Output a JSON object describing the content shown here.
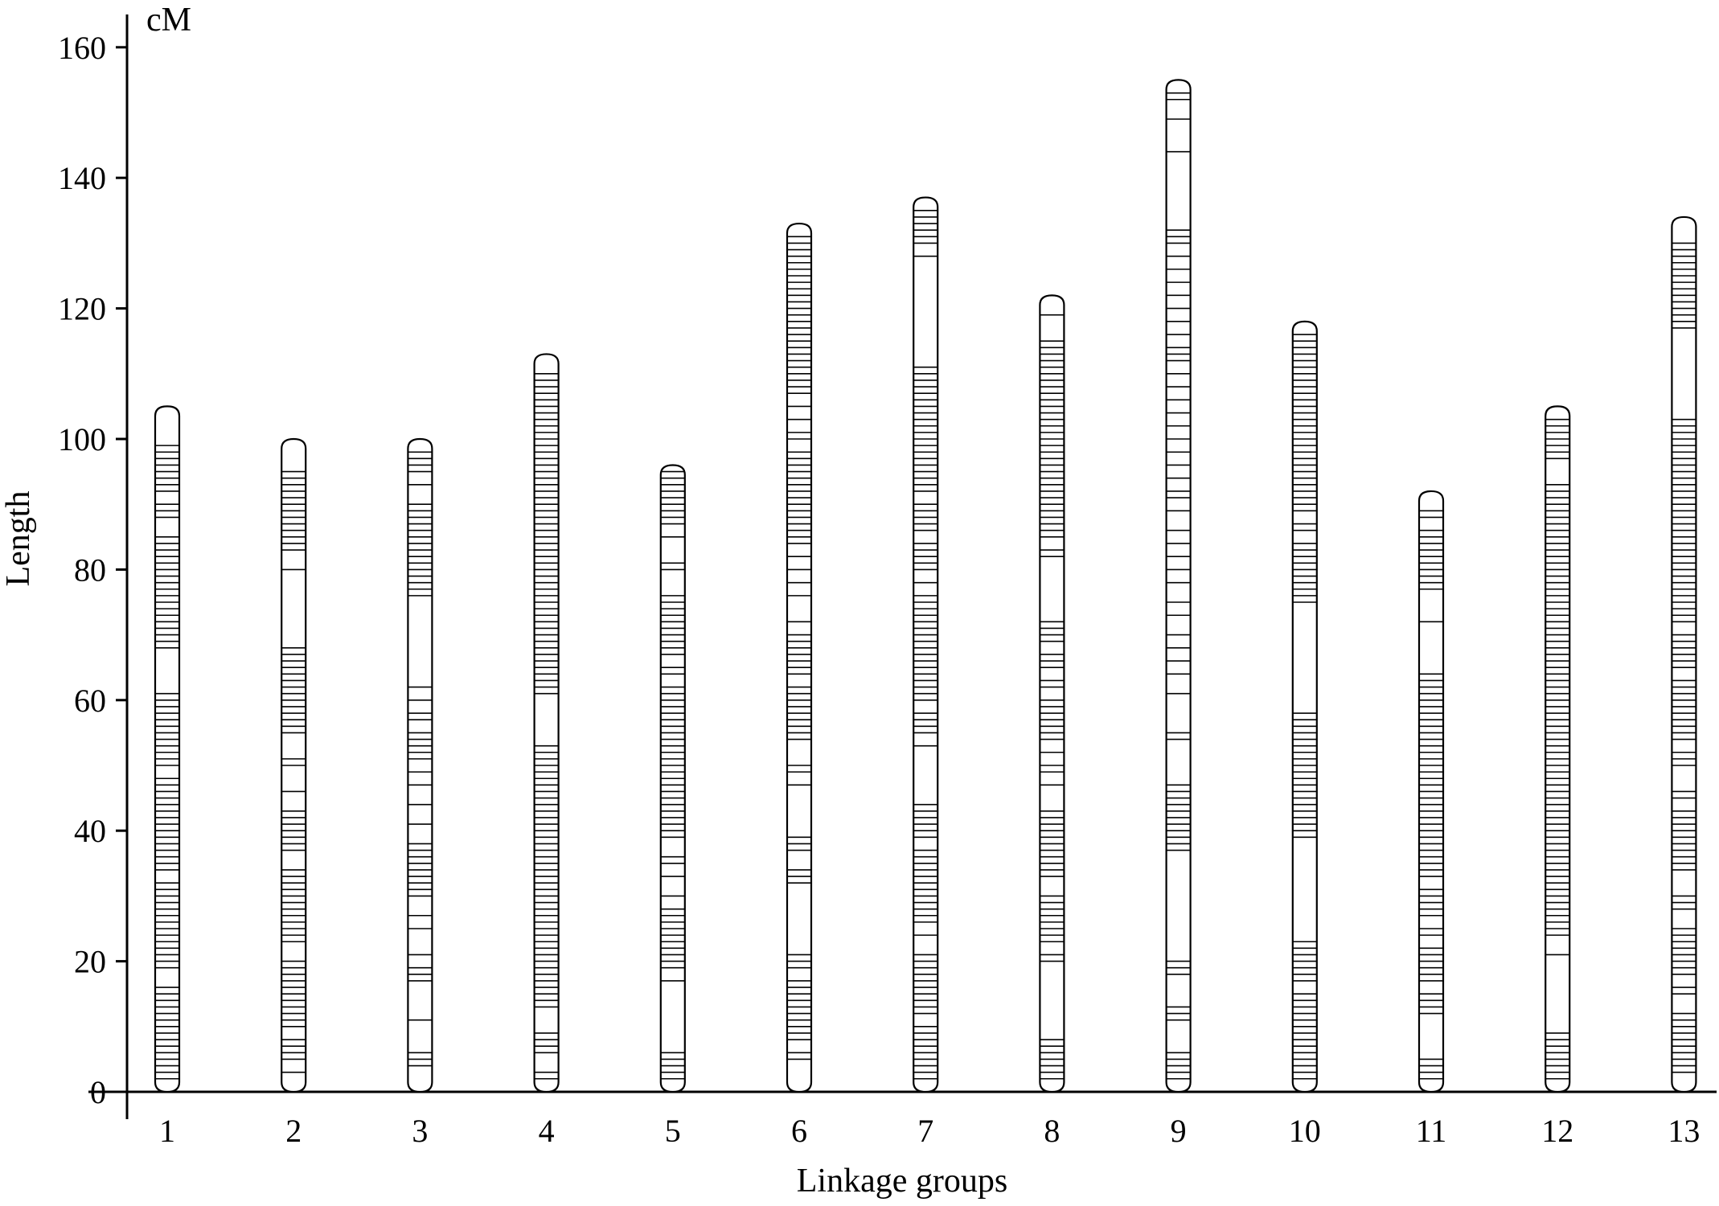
{
  "chart_data": {
    "type": "linkage-map",
    "unit_label": "cM",
    "ylabel": "Length",
    "xlabel": "Linkage groups",
    "ylim": [
      0,
      170
    ],
    "yticks": [
      0,
      20,
      40,
      60,
      80,
      100,
      120,
      140,
      160
    ],
    "grid": false,
    "legend": "none",
    "groups": [
      {
        "name": "1",
        "length": 105,
        "markers": [
          2,
          3,
          4,
          5,
          6,
          7,
          8,
          9,
          10,
          11,
          12,
          13,
          14,
          15,
          16,
          19,
          20,
          21,
          22,
          23,
          24,
          25,
          26,
          27,
          28,
          29,
          30,
          31,
          32,
          34,
          35,
          36,
          37,
          38,
          39,
          40,
          41,
          42,
          43,
          44,
          45,
          46,
          47,
          48,
          50,
          51,
          52,
          53,
          54,
          55,
          56,
          57,
          58,
          59,
          60,
          61,
          68,
          69,
          70,
          71,
          72,
          73,
          74,
          75,
          76,
          77,
          78,
          79,
          80,
          81,
          82,
          83,
          84,
          85,
          88,
          89,
          90,
          92,
          93,
          94,
          95,
          96,
          97,
          98,
          99
        ]
      },
      {
        "name": "2",
        "length": 100,
        "markers": [
          3,
          5,
          6,
          7,
          8,
          10,
          11,
          12,
          13,
          14,
          15,
          16,
          17,
          18,
          19,
          20,
          23,
          24,
          25,
          26,
          27,
          28,
          29,
          30,
          31,
          32,
          33,
          34,
          37,
          38,
          39,
          40,
          41,
          42,
          43,
          46,
          50,
          51,
          55,
          56,
          57,
          58,
          59,
          60,
          61,
          62,
          63,
          64,
          65,
          66,
          67,
          68,
          80,
          83,
          84,
          85,
          86,
          87,
          88,
          89,
          90,
          91,
          92,
          93,
          94,
          95
        ]
      },
      {
        "name": "3",
        "length": 100,
        "markers": [
          4,
          5,
          6,
          11,
          17,
          18,
          19,
          21,
          25,
          27,
          30,
          31,
          32,
          33,
          34,
          35,
          36,
          37,
          38,
          41,
          44,
          47,
          49,
          51,
          52,
          53,
          54,
          55,
          57,
          58,
          60,
          62,
          76,
          77,
          78,
          79,
          80,
          81,
          82,
          83,
          84,
          85,
          86,
          87,
          88,
          89,
          90,
          93,
          95,
          96,
          97,
          98
        ]
      },
      {
        "name": "4",
        "length": 113,
        "markers": [
          2,
          3,
          6,
          7,
          8,
          9,
          13,
          14,
          15,
          16,
          17,
          18,
          19,
          20,
          21,
          22,
          23,
          24,
          25,
          26,
          27,
          28,
          29,
          30,
          31,
          32,
          33,
          34,
          35,
          36,
          37,
          38,
          39,
          40,
          41,
          42,
          43,
          44,
          45,
          46,
          47,
          48,
          49,
          50,
          51,
          52,
          53,
          61,
          62,
          63,
          64,
          65,
          66,
          67,
          68,
          69,
          70,
          71,
          72,
          73,
          74,
          75,
          76,
          77,
          78,
          79,
          80,
          81,
          82,
          83,
          84,
          85,
          86,
          87,
          88,
          89,
          90,
          91,
          92,
          93,
          94,
          95,
          96,
          97,
          98,
          99,
          100,
          101,
          102,
          103,
          104,
          105,
          106,
          107,
          108,
          109,
          110
        ]
      },
      {
        "name": "5",
        "length": 96,
        "markers": [
          2,
          3,
          4,
          5,
          6,
          17,
          19,
          20,
          21,
          22,
          23,
          24,
          25,
          26,
          27,
          28,
          30,
          33,
          35,
          36,
          39,
          40,
          41,
          42,
          43,
          44,
          45,
          46,
          47,
          48,
          49,
          50,
          51,
          52,
          53,
          54,
          55,
          56,
          57,
          58,
          59,
          60,
          61,
          62,
          64,
          65,
          67,
          68,
          69,
          70,
          71,
          72,
          73,
          74,
          75,
          76,
          80,
          81,
          85,
          87,
          88,
          89,
          90,
          91,
          92,
          93,
          94,
          95
        ]
      },
      {
        "name": "6",
        "length": 133,
        "markers": [
          5,
          6,
          8,
          9,
          10,
          11,
          12,
          13,
          14,
          15,
          16,
          17,
          19,
          20,
          21,
          32,
          33,
          34,
          37,
          38,
          39,
          47,
          49,
          50,
          54,
          55,
          56,
          57,
          58,
          59,
          60,
          61,
          62,
          64,
          65,
          66,
          67,
          68,
          69,
          70,
          72,
          76,
          78,
          80,
          82,
          84,
          85,
          86,
          87,
          88,
          89,
          90,
          91,
          92,
          93,
          94,
          95,
          96,
          97,
          98,
          100,
          101,
          103,
          105,
          107,
          108,
          109,
          110,
          111,
          112,
          113,
          114,
          115,
          116,
          117,
          118,
          119,
          120,
          121,
          122,
          123,
          124,
          125,
          126,
          127,
          128,
          129,
          130,
          131
        ]
      },
      {
        "name": "7",
        "length": 137,
        "markers": [
          2,
          3,
          4,
          5,
          6,
          7,
          8,
          9,
          10,
          12,
          13,
          14,
          15,
          16,
          17,
          18,
          19,
          20,
          21,
          24,
          26,
          27,
          28,
          29,
          30,
          31,
          32,
          33,
          34,
          35,
          36,
          37,
          39,
          40,
          41,
          42,
          43,
          44,
          53,
          55,
          56,
          57,
          58,
          60,
          61,
          62,
          63,
          64,
          65,
          66,
          67,
          68,
          69,
          70,
          71,
          72,
          73,
          74,
          75,
          76,
          78,
          80,
          81,
          82,
          83,
          84,
          86,
          87,
          88,
          89,
          90,
          92,
          93,
          94,
          95,
          96,
          97,
          98,
          99,
          100,
          101,
          102,
          103,
          104,
          105,
          106,
          107,
          108,
          109,
          110,
          111,
          128,
          130,
          131,
          132,
          133,
          134,
          135
        ]
      },
      {
        "name": "8",
        "length": 122,
        "markers": [
          2,
          3,
          4,
          5,
          6,
          7,
          8,
          20,
          21,
          23,
          24,
          25,
          26,
          27,
          28,
          29,
          30,
          33,
          34,
          35,
          36,
          37,
          38,
          39,
          40,
          41,
          42,
          43,
          47,
          49,
          50,
          52,
          54,
          55,
          56,
          57,
          58,
          59,
          60,
          62,
          63,
          65,
          66,
          67,
          69,
          70,
          71,
          72,
          82,
          83,
          85,
          86,
          87,
          88,
          89,
          90,
          91,
          92,
          93,
          94,
          95,
          96,
          97,
          98,
          99,
          100,
          101,
          102,
          103,
          104,
          105,
          106,
          107,
          108,
          109,
          110,
          111,
          112,
          113,
          114,
          115,
          119
        ]
      },
      {
        "name": "9",
        "length": 155,
        "markers": [
          2,
          3,
          4,
          5,
          6,
          11,
          12,
          13,
          18,
          19,
          20,
          37,
          38,
          39,
          40,
          41,
          42,
          43,
          44,
          45,
          46,
          47,
          54,
          55,
          61,
          64,
          66,
          68,
          70,
          73,
          75,
          78,
          80,
          82,
          84,
          86,
          89,
          91,
          92,
          94,
          96,
          98,
          100,
          102,
          104,
          106,
          108,
          110,
          112,
          113,
          114,
          116,
          118,
          120,
          122,
          124,
          126,
          128,
          130,
          131,
          132,
          144,
          149,
          152,
          153
        ]
      },
      {
        "name": "10",
        "length": 118,
        "markers": [
          2,
          3,
          4,
          5,
          6,
          7,
          8,
          9,
          10,
          11,
          12,
          13,
          14,
          15,
          17,
          18,
          19,
          20,
          21,
          22,
          23,
          39,
          40,
          41,
          42,
          43,
          44,
          45,
          46,
          47,
          48,
          49,
          50,
          51,
          52,
          53,
          54,
          55,
          56,
          57,
          58,
          75,
          76,
          77,
          78,
          79,
          80,
          81,
          82,
          83,
          84,
          86,
          87,
          89,
          90,
          91,
          92,
          93,
          94,
          95,
          96,
          97,
          98,
          99,
          100,
          101,
          102,
          103,
          104,
          105,
          106,
          107,
          108,
          109,
          110,
          111,
          112,
          113,
          114,
          115,
          116
        ]
      },
      {
        "name": "11",
        "length": 92,
        "markers": [
          2,
          3,
          4,
          5,
          12,
          13,
          14,
          15,
          17,
          18,
          19,
          20,
          21,
          22,
          24,
          25,
          27,
          28,
          29,
          30,
          31,
          33,
          34,
          35,
          36,
          37,
          38,
          39,
          40,
          41,
          42,
          43,
          44,
          45,
          46,
          47,
          48,
          49,
          50,
          51,
          52,
          53,
          54,
          55,
          56,
          57,
          58,
          59,
          60,
          61,
          62,
          63,
          64,
          72,
          77,
          78,
          79,
          80,
          81,
          82,
          83,
          84,
          85,
          86,
          88,
          89
        ]
      },
      {
        "name": "12",
        "length": 105,
        "markers": [
          2,
          3,
          4,
          5,
          6,
          7,
          8,
          9,
          21,
          24,
          25,
          26,
          27,
          28,
          29,
          30,
          31,
          32,
          33,
          34,
          35,
          36,
          37,
          38,
          39,
          40,
          41,
          42,
          43,
          44,
          45,
          46,
          47,
          48,
          49,
          50,
          51,
          52,
          53,
          54,
          55,
          56,
          57,
          58,
          59,
          60,
          61,
          62,
          63,
          64,
          65,
          66,
          67,
          68,
          69,
          70,
          71,
          72,
          73,
          74,
          75,
          76,
          77,
          78,
          79,
          80,
          81,
          82,
          83,
          84,
          85,
          86,
          87,
          88,
          89,
          90,
          91,
          92,
          93,
          97,
          98,
          99,
          100,
          101,
          102,
          103
        ]
      },
      {
        "name": "13",
        "length": 134,
        "markers": [
          3,
          4,
          5,
          6,
          7,
          8,
          9,
          10,
          11,
          12,
          15,
          16,
          18,
          19,
          20,
          21,
          22,
          23,
          24,
          25,
          28,
          29,
          30,
          34,
          35,
          36,
          37,
          38,
          39,
          40,
          41,
          42,
          43,
          45,
          46,
          50,
          51,
          52,
          54,
          55,
          56,
          57,
          58,
          59,
          60,
          61,
          62,
          63,
          65,
          66,
          67,
          68,
          69,
          70,
          72,
          73,
          74,
          75,
          76,
          77,
          78,
          79,
          80,
          81,
          82,
          83,
          84,
          85,
          86,
          87,
          88,
          89,
          90,
          91,
          92,
          93,
          94,
          95,
          96,
          97,
          98,
          99,
          100,
          101,
          102,
          103,
          117,
          118,
          119,
          120,
          121,
          122,
          123,
          124,
          125,
          126,
          127,
          128,
          129,
          130
        ]
      }
    ]
  }
}
